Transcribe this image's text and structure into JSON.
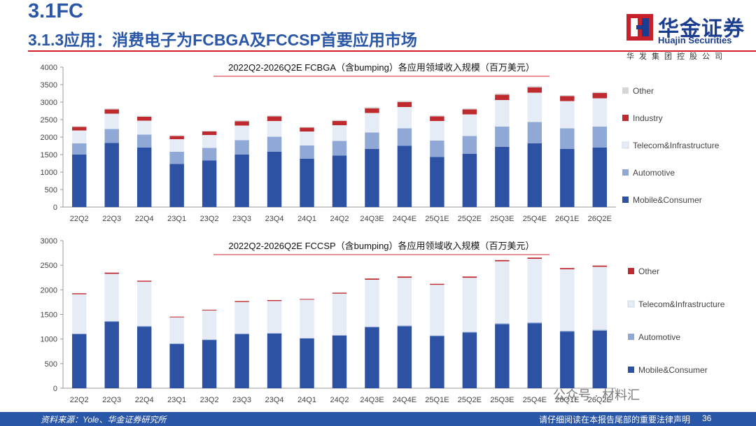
{
  "header": {
    "section": "3.1FC",
    "subtitle": "3.1.3应用：消费电子为FCBGA及FCCSP首要应用市场"
  },
  "logo": {
    "name_cn": "华金证券",
    "name_en": "Huajin Securities",
    "subtitle": "华发集团控股公司"
  },
  "footer": {
    "source": "资料来源：Yole、华金证券研究所",
    "disclaimer": "请仔细阅读在本报告尾部的重要法律声明",
    "page": "36"
  },
  "watermark": "公众号 · 材料汇",
  "colors": {
    "mobile": "#2d52a3",
    "automotive": "#8fa8d6",
    "telecom": "#e6ecf6",
    "industry": "#bf2a2f",
    "other": "#d6d6d6",
    "accent_red": "#d31f2b"
  },
  "chart_data": [
    {
      "type": "bar",
      "stacked": true,
      "title": "2022Q2-2026Q2E FCBGA（含bumping）各应用领域收入规模（百万美元）",
      "categories": [
        "22Q2",
        "22Q3",
        "22Q4",
        "23Q1",
        "23Q2",
        "23Q3",
        "23Q4",
        "24Q1",
        "24Q2",
        "24Q3E",
        "24Q4E",
        "25Q1E",
        "25Q2E",
        "25Q3E",
        "25Q4E",
        "26Q1E",
        "26Q2E"
      ],
      "ylim": [
        0,
        4000
      ],
      "yticks": [
        "0",
        "500",
        "1000",
        "1500",
        "2000",
        "2500",
        "3000",
        "3500",
        "4000"
      ],
      "series": [
        {
          "name": "Mobile&Consumer",
          "color": "#2d52a3",
          "values": [
            1500,
            1830,
            1700,
            1230,
            1330,
            1500,
            1580,
            1380,
            1470,
            1660,
            1750,
            1430,
            1520,
            1720,
            1820,
            1660,
            1700
          ]
        },
        {
          "name": "Automotive",
          "color": "#8fa8d6",
          "values": [
            320,
            400,
            370,
            350,
            360,
            410,
            430,
            380,
            420,
            470,
            500,
            470,
            510,
            580,
            610,
            590,
            600
          ]
        },
        {
          "name": "Telecom&Infrastructure",
          "color": "#e6ecf6",
          "values": [
            370,
            440,
            400,
            360,
            370,
            420,
            450,
            400,
            450,
            560,
            610,
            560,
            620,
            760,
            840,
            780,
            810
          ]
        },
        {
          "name": "Industry",
          "color": "#bf2a2f",
          "values": [
            100,
            120,
            110,
            90,
            100,
            120,
            130,
            110,
            120,
            130,
            140,
            130,
            140,
            150,
            150,
            140,
            150
          ]
        },
        {
          "name": "Other",
          "color": "#d6d6d6",
          "values": [
            20,
            30,
            30,
            20,
            20,
            30,
            30,
            20,
            30,
            40,
            40,
            30,
            30,
            40,
            40,
            30,
            30
          ]
        }
      ],
      "legend_order": [
        "Other",
        "Industry",
        "Telecom&Infrastructure",
        "Automotive",
        "Mobile&Consumer"
      ]
    },
    {
      "type": "bar",
      "stacked": true,
      "title": "2022Q2-2026Q2E FCCSP（含bumping）各应用领域收入规模（百万美元）",
      "categories": [
        "22Q2",
        "22Q3",
        "22Q4",
        "23Q1",
        "23Q2",
        "23Q3",
        "23Q4",
        "24Q1",
        "24Q2",
        "24Q3E",
        "24Q4E",
        "25Q1E",
        "25Q2E",
        "25Q3E",
        "25Q4E",
        "26Q1E",
        "26Q2E"
      ],
      "ylim": [
        0,
        3000
      ],
      "yticks": [
        "0",
        "500",
        "1000",
        "1500",
        "2000",
        "2500",
        "3000"
      ],
      "series": [
        {
          "name": "Mobile&Consumer",
          "color": "#2d52a3",
          "values": [
            1100,
            1350,
            1250,
            900,
            980,
            1100,
            1110,
            1010,
            1070,
            1240,
            1260,
            1060,
            1130,
            1300,
            1320,
            1150,
            1170
          ]
        },
        {
          "name": "Automotive",
          "color": "#8fa8d6",
          "values": [
            10,
            15,
            15,
            10,
            10,
            12,
            12,
            10,
            12,
            15,
            15,
            12,
            15,
            20,
            20,
            18,
            18
          ]
        },
        {
          "name": "Telecom&Infrastructure",
          "color": "#e6ecf6",
          "values": [
            800,
            960,
            900,
            530,
            590,
            640,
            650,
            780,
            840,
            950,
            970,
            1030,
            1100,
            1260,
            1290,
            1250,
            1280
          ]
        },
        {
          "name": "Other",
          "color": "#bf2a2f",
          "values": [
            20,
            25,
            20,
            15,
            15,
            20,
            20,
            15,
            20,
            25,
            25,
            20,
            25,
            25,
            25,
            25,
            25
          ]
        }
      ],
      "legend_order": [
        "Other",
        "Telecom&Infrastructure",
        "Automotive",
        "Mobile&Consumer"
      ]
    }
  ]
}
